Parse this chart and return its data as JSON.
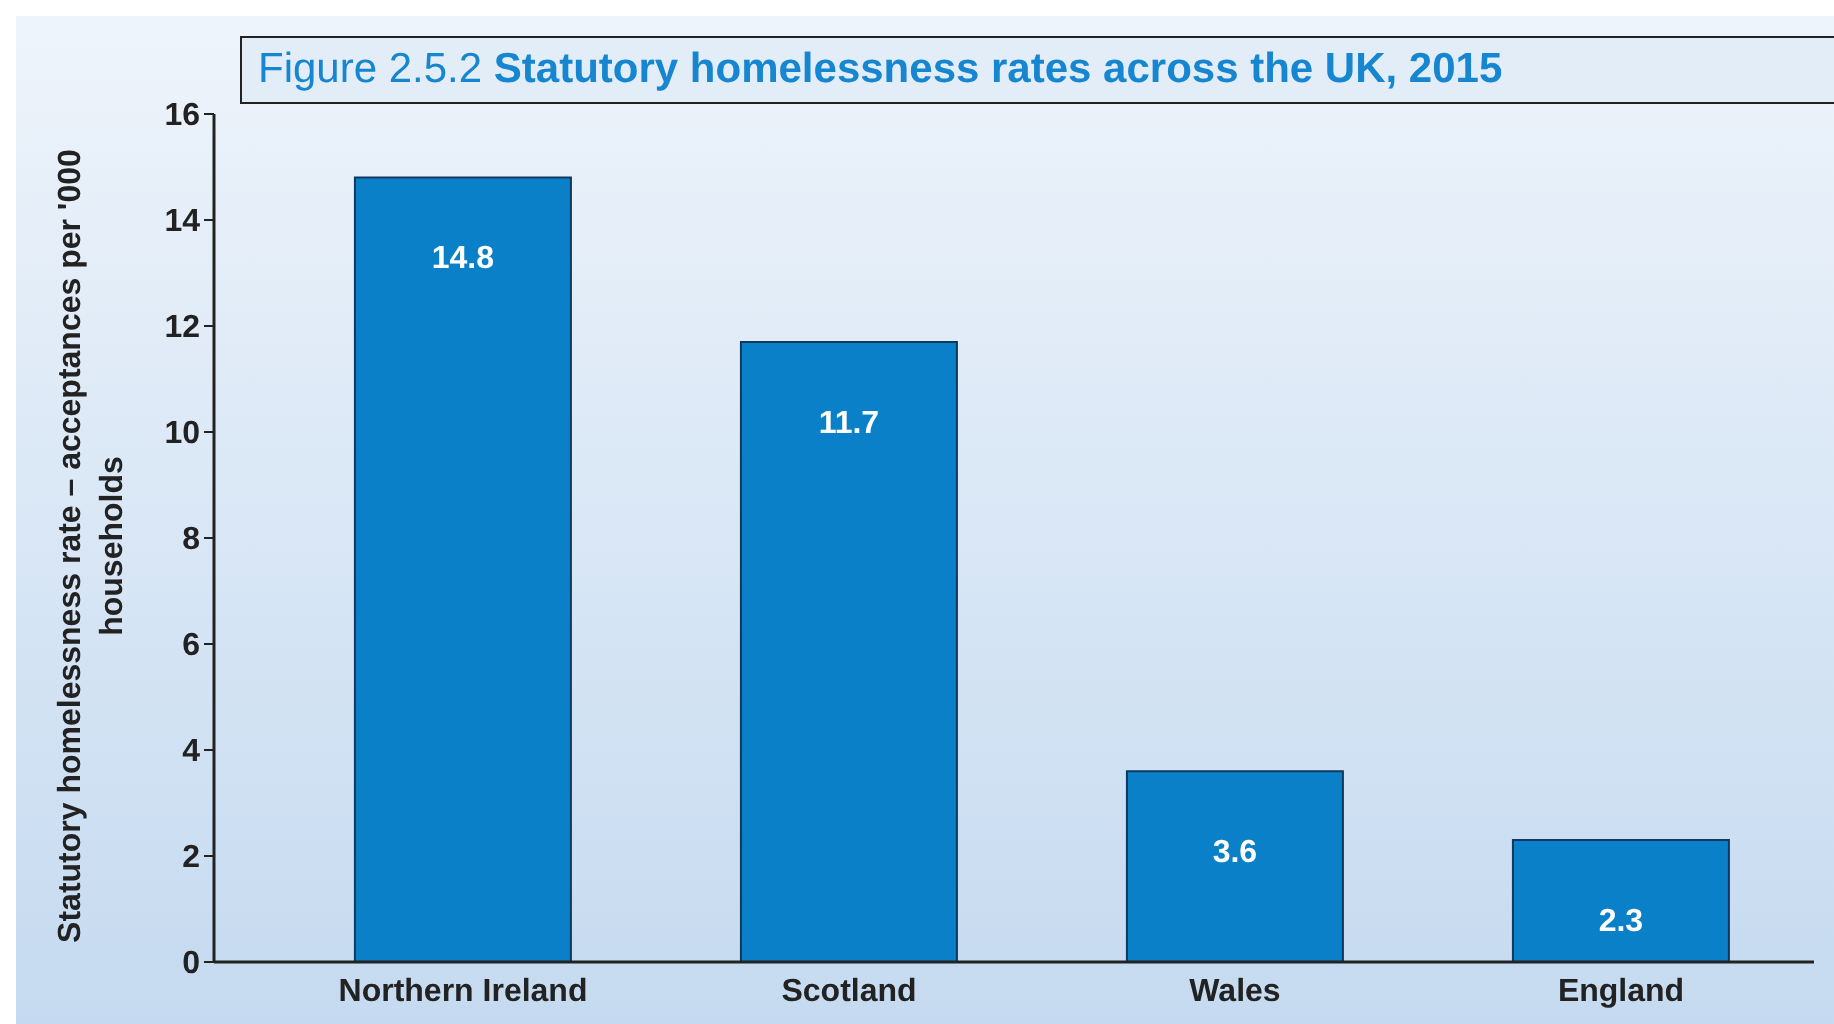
{
  "chart_data": {
    "type": "bar",
    "title": "Figure 2.5.2 Statutory homelessness rates across the UK, 2015",
    "ylabel": "Statutory homelessness rate – acceptances per '000 households",
    "categories": [
      "Northern Ireland",
      "Scotland",
      "Wales",
      "England"
    ],
    "values": [
      14.8,
      11.7,
      3.6,
      2.3
    ],
    "color": "#0a80c9",
    "ylim": [
      0,
      16
    ],
    "yticks": [
      0,
      2,
      4,
      6,
      8,
      10,
      12,
      14,
      16
    ],
    "data_labels": true
  }
}
